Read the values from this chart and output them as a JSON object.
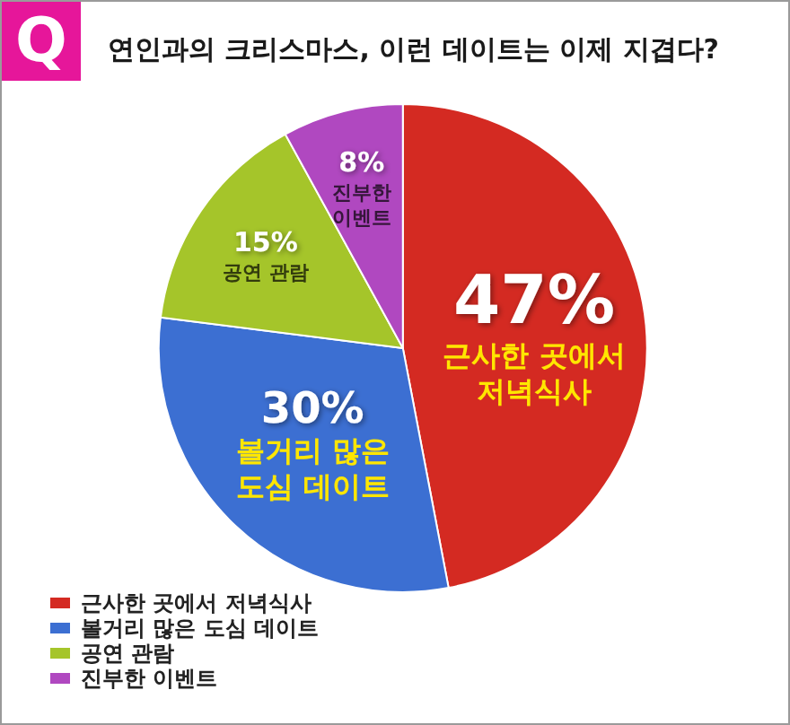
{
  "chart_data": {
    "type": "pie",
    "title": "연인과의 크리스마스, 이런 데이트는 이제 지겹다?",
    "categories": [
      "근사한 곳에서 저녁식사",
      "볼거리 많은 도심 데이트",
      "공연 관람",
      "진부한 이벤트"
    ],
    "values": [
      47,
      30,
      15,
      8
    ],
    "colors": [
      "#d42a22",
      "#3c6fd2",
      "#a5c52a",
      "#b048c0"
    ],
    "value_labels": [
      "47%",
      "30%",
      "15%",
      "8%"
    ],
    "legend": "bottom left",
    "annotations": [
      "Q"
    ]
  }
}
